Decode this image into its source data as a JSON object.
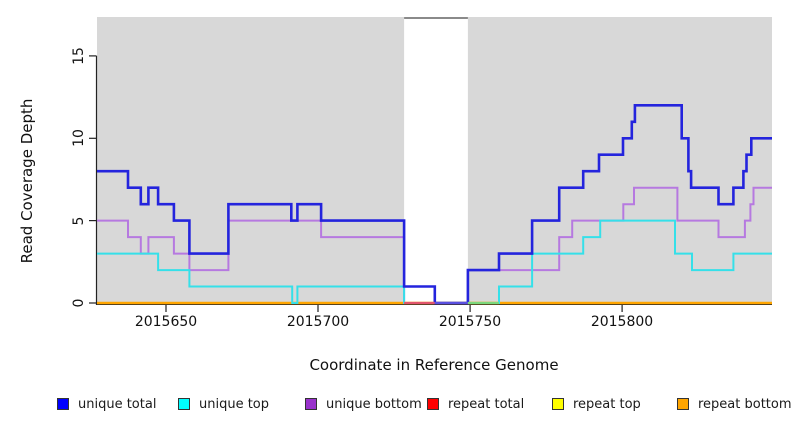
{
  "chart_data": {
    "type": "line",
    "subtype": "step-coverage-plot",
    "title": "",
    "xlabel": "Coordinate in Reference Genome",
    "ylabel": "Read Coverage Depth",
    "xlim": [
      2015627.3,
      2015849.3
    ],
    "ylim": [
      0,
      17.36
    ],
    "xticks": [
      2015650,
      2015700,
      2015750,
      2015800
    ],
    "xtick_labels": [
      "2015650",
      "2015700",
      "2015750",
      "2015800"
    ],
    "yticks": [
      0,
      5,
      10,
      15
    ],
    "ytick_labels": [
      "0",
      "5",
      "10",
      "15"
    ],
    "grid": "off",
    "legend_position": "bottom",
    "plot_background": {
      "color": "#d8d8d8",
      "shaded_regions": [
        [
          2015627.3,
          2015728.3
        ],
        [
          2015749.3,
          2015849.3
        ]
      ],
      "gap_region": [
        2015728.3,
        2015749.3
      ],
      "gap_top_border_color": "#8a8a8a"
    },
    "series": [
      {
        "name": "unique total",
        "legend_color": "#0000ff",
        "line_color": "#2424dd",
        "width": 2.6,
        "steps": [
          [
            2015627.3,
            8
          ],
          [
            2015637.5,
            7
          ],
          [
            2015641.7,
            6
          ],
          [
            2015644.2,
            7
          ],
          [
            2015647.4,
            6
          ],
          [
            2015652.6,
            5
          ],
          [
            2015657.7,
            3
          ],
          [
            2015670.5,
            6
          ],
          [
            2015691.2,
            5
          ],
          [
            2015693.2,
            6
          ],
          [
            2015701.0,
            5
          ],
          [
            2015728.3,
            1
          ],
          [
            2015738.4,
            0
          ],
          [
            2015749.3,
            2
          ],
          [
            2015759.5,
            3
          ],
          [
            2015770.4,
            5
          ],
          [
            2015779.3,
            7
          ],
          [
            2015787.2,
            8
          ],
          [
            2015792.4,
            9
          ],
          [
            2015800.3,
            10
          ],
          [
            2015803.2,
            11
          ],
          [
            2015804.2,
            12
          ],
          [
            2015819.6,
            10
          ],
          [
            2015821.8,
            8
          ],
          [
            2015822.7,
            7
          ],
          [
            2015831.7,
            6
          ],
          [
            2015836.6,
            7
          ],
          [
            2015839.9,
            8
          ],
          [
            2015840.9,
            9
          ],
          [
            2015842.5,
            10
          ]
        ]
      },
      {
        "name": "unique top",
        "legend_color": "#00ffff",
        "line_color": "#35e0e9",
        "width": 2,
        "steps": [
          [
            2015627.3,
            3
          ],
          [
            2015647.4,
            2
          ],
          [
            2015657.7,
            1
          ],
          [
            2015691.5,
            0
          ],
          [
            2015693.2,
            1
          ],
          [
            2015728.3,
            0
          ],
          [
            2015759.5,
            1
          ],
          [
            2015770.4,
            3
          ],
          [
            2015787.2,
            4
          ],
          [
            2015792.8,
            5
          ],
          [
            2015817.4,
            3
          ],
          [
            2015823.0,
            2
          ],
          [
            2015836.6,
            3
          ]
        ]
      },
      {
        "name": "unique bottom",
        "legend_color": "#9932cc",
        "line_color": "#b679e0",
        "width": 2,
        "steps": [
          [
            2015627.3,
            5
          ],
          [
            2015637.5,
            4
          ],
          [
            2015641.7,
            3
          ],
          [
            2015644.2,
            4
          ],
          [
            2015652.6,
            3
          ],
          [
            2015657.7,
            2
          ],
          [
            2015670.5,
            5
          ],
          [
            2015701.0,
            4
          ],
          [
            2015728.3,
            0
          ],
          [
            2015749.3,
            2
          ],
          [
            2015779.3,
            4
          ],
          [
            2015783.6,
            5
          ],
          [
            2015800.4,
            6
          ],
          [
            2015803.9,
            7
          ],
          [
            2015818.2,
            5
          ],
          [
            2015831.7,
            4
          ],
          [
            2015840.4,
            5
          ],
          [
            2015842.2,
            6
          ],
          [
            2015843.2,
            7
          ]
        ]
      },
      {
        "name": "repeat total",
        "legend_color": "#ff0000",
        "line_color": "#e25570",
        "width": 2,
        "steps": [
          [
            2015627.3,
            0
          ]
        ]
      },
      {
        "name": "repeat top",
        "legend_color": "#ffff00",
        "line_color": "#ffff00",
        "width": 2,
        "steps": [
          [
            2015627.3,
            0
          ]
        ]
      },
      {
        "name": "repeat bottom",
        "legend_color": "#ffa500",
        "line_color": "#ffa500",
        "width": 2.4,
        "steps": [
          [
            2015627.3,
            0
          ]
        ]
      }
    ],
    "baseline_overlays": [
      {
        "from": 2015728.3,
        "to": 2015738.4,
        "color": "#e2556d"
      },
      {
        "from": 2015738.4,
        "to": 2015749.3,
        "color": "#5a50e0"
      },
      {
        "from": 2015749.3,
        "to": 2015759.5,
        "color": "#7bd87b"
      }
    ]
  }
}
